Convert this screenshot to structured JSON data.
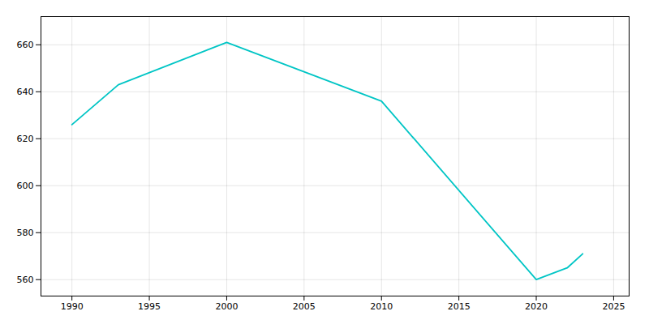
{
  "chart_data": {
    "type": "line",
    "x": [
      1990,
      1993,
      2000,
      2010,
      2020,
      2022,
      2023
    ],
    "values": [
      626,
      643,
      661,
      636,
      560,
      565,
      571
    ],
    "color": "#00C5C5",
    "xlim": [
      1988,
      2026
    ],
    "ylim": [
      553,
      672
    ],
    "xticks": [
      1990,
      1995,
      2000,
      2005,
      2010,
      2015,
      2020,
      2025
    ],
    "yticks": [
      560,
      580,
      600,
      620,
      640,
      660
    ],
    "grid": true
  }
}
